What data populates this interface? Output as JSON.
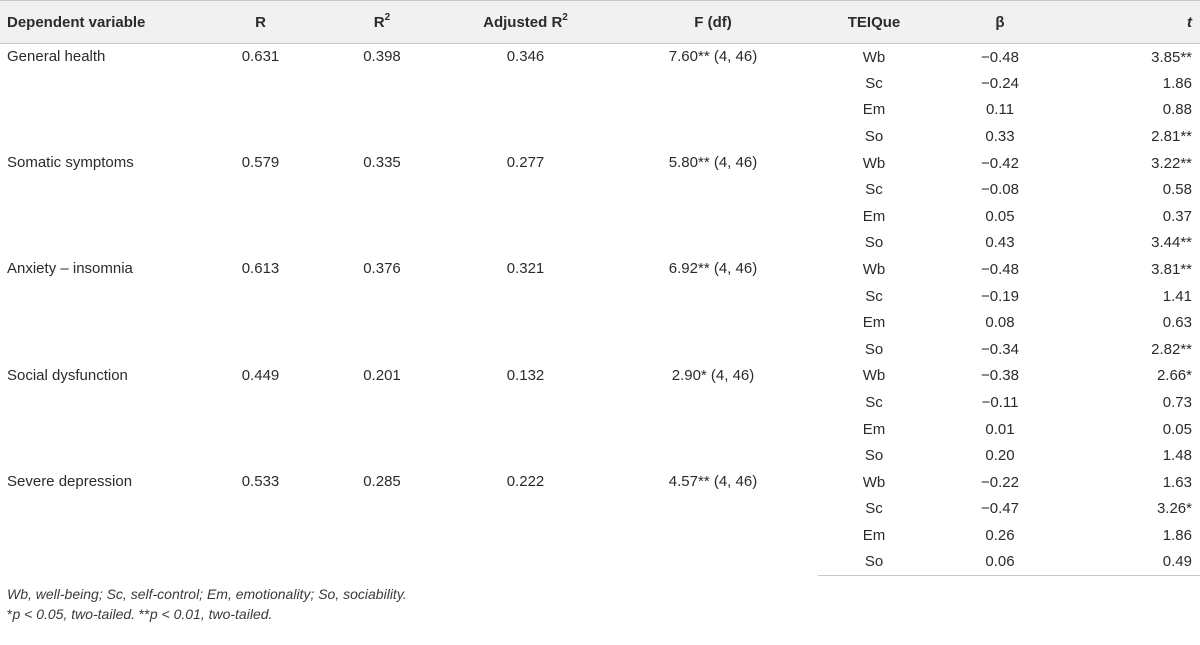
{
  "header": {
    "dependent_variable": "Dependent variable",
    "r": "R",
    "r2_base": "R",
    "r2_sup": "2",
    "adj_base": "Adjusted R",
    "adj_sup": "2",
    "f_df": "F (df)",
    "teique": "TEIQue",
    "beta": "β",
    "t": "t"
  },
  "groups": [
    {
      "dependent": "General health",
      "r": "0.631",
      "r2": "0.398",
      "adj_r2": "0.346",
      "f_df": "7.60** (4, 46)",
      "rows": [
        {
          "teique": "Wb",
          "beta": "−0.48",
          "t": "3.85**"
        },
        {
          "teique": "Sc",
          "beta": "−0.24",
          "t": "1.86"
        },
        {
          "teique": "Em",
          "beta": "0.11",
          "t": "0.88"
        },
        {
          "teique": "So",
          "beta": "0.33",
          "t": "2.81**"
        }
      ]
    },
    {
      "dependent": "Somatic symptoms",
      "r": "0.579",
      "r2": "0.335",
      "adj_r2": "0.277",
      "f_df": "5.80** (4, 46)",
      "rows": [
        {
          "teique": "Wb",
          "beta": "−0.42",
          "t": "3.22**"
        },
        {
          "teique": "Sc",
          "beta": "−0.08",
          "t": "0.58"
        },
        {
          "teique": "Em",
          "beta": "0.05",
          "t": "0.37"
        },
        {
          "teique": "So",
          "beta": "0.43",
          "t": "3.44**"
        }
      ]
    },
    {
      "dependent": "Anxiety – insomnia",
      "r": "0.613",
      "r2": "0.376",
      "adj_r2": "0.321",
      "f_df": "6.92** (4, 46)",
      "rows": [
        {
          "teique": "Wb",
          "beta": "−0.48",
          "t": "3.81**"
        },
        {
          "teique": "Sc",
          "beta": "−0.19",
          "t": "1.41"
        },
        {
          "teique": "Em",
          "beta": "0.08",
          "t": "0.63"
        },
        {
          "teique": "So",
          "beta": "−0.34",
          "t": "2.82**"
        }
      ]
    },
    {
      "dependent": "Social dysfunction",
      "r": "0.449",
      "r2": "0.201",
      "adj_r2": "0.132",
      "f_df": "2.90* (4, 46)",
      "rows": [
        {
          "teique": "Wb",
          "beta": "−0.38",
          "t": "2.66*"
        },
        {
          "teique": "Sc",
          "beta": "−0.11",
          "t": "0.73"
        },
        {
          "teique": "Em",
          "beta": "0.01",
          "t": "0.05"
        },
        {
          "teique": "So",
          "beta": "0.20",
          "t": "1.48"
        }
      ]
    },
    {
      "dependent": "Severe depression",
      "r": "0.533",
      "r2": "0.285",
      "adj_r2": "0.222",
      "f_df": "4.57** (4, 46)",
      "rows": [
        {
          "teique": "Wb",
          "beta": "−0.22",
          "t": "1.63"
        },
        {
          "teique": "Sc",
          "beta": "−0.47",
          "t": "3.26*"
        },
        {
          "teique": "Em",
          "beta": "0.26",
          "t": "1.86"
        },
        {
          "teique": "So",
          "beta": "0.06",
          "t": "0.49"
        }
      ]
    }
  ],
  "footnotes": {
    "abbreviations": "Wb, well-being; Sc, self-control; Em, emotionality; So, sociability.",
    "significance": {
      "star1": "*",
      "p05": "p < 0.05, two-tailed. ",
      "star2": "**",
      "p01": "p < 0.01, two-tailed."
    }
  }
}
